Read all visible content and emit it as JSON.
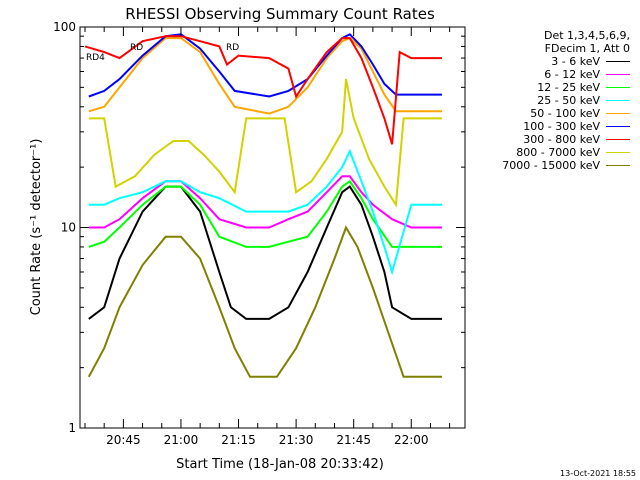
{
  "chart_data": {
    "type": "line",
    "title": "RHESSI Observing Summary Count Rates",
    "xlabel": "Start Time (18-Jan-08 20:33:42)",
    "ylabel": "Count Rate (s⁻¹ detector⁻¹)",
    "yscale": "log",
    "ylim": [
      1,
      100
    ],
    "xlim": [
      "20:33:42",
      "22:14:00"
    ],
    "x_tick_labels": [
      "20:45",
      "21:00",
      "21:15",
      "21:30",
      "21:45",
      "22:00"
    ],
    "y_tick_labels": [
      "1",
      "10",
      "100"
    ],
    "timestamp": "13-Oct-2021 18:55",
    "legend_header": [
      "Det 1,3,4,5,6,9,",
      "FDecim 1, Att 0"
    ],
    "annotations": [
      "RD",
      "RD4",
      "RD"
    ],
    "series": [
      {
        "name": "3 - 6 keV",
        "color": "#000000",
        "values": [
          [
            "20:36",
            3.5
          ],
          [
            "20:40",
            4
          ],
          [
            "20:44",
            7
          ],
          [
            "20:50",
            12
          ],
          [
            "20:56",
            16
          ],
          [
            "21:00",
            16
          ],
          [
            "21:05",
            12
          ],
          [
            "21:10",
            6
          ],
          [
            "21:13",
            4
          ],
          [
            "21:17",
            3.5
          ],
          [
            "21:23",
            3.5
          ],
          [
            "21:28",
            4
          ],
          [
            "21:33",
            6
          ],
          [
            "21:38",
            10
          ],
          [
            "21:42",
            15
          ],
          [
            "21:44",
            16
          ],
          [
            "21:47",
            13
          ],
          [
            "21:50",
            9
          ],
          [
            "21:53",
            6
          ],
          [
            "21:55",
            4
          ],
          [
            "22:00",
            3.5
          ],
          [
            "22:08",
            3.5
          ]
        ]
      },
      {
        "name": "6 - 12 keV",
        "color": "#ff00ff",
        "values": [
          [
            "20:36",
            10
          ],
          [
            "20:40",
            10
          ],
          [
            "20:44",
            11
          ],
          [
            "20:50",
            14
          ],
          [
            "20:56",
            17
          ],
          [
            "21:00",
            17
          ],
          [
            "21:05",
            14
          ],
          [
            "21:10",
            11
          ],
          [
            "21:17",
            10
          ],
          [
            "21:23",
            10
          ],
          [
            "21:28",
            11
          ],
          [
            "21:33",
            12
          ],
          [
            "21:38",
            15
          ],
          [
            "21:42",
            18
          ],
          [
            "21:44",
            18
          ],
          [
            "21:47",
            15
          ],
          [
            "21:50",
            13
          ],
          [
            "21:55",
            11
          ],
          [
            "22:00",
            10
          ],
          [
            "22:08",
            10
          ]
        ]
      },
      {
        "name": "12 - 25 keV",
        "color": "#00ff00",
        "values": [
          [
            "20:36",
            8
          ],
          [
            "20:40",
            8.5
          ],
          [
            "20:44",
            10
          ],
          [
            "20:50",
            13
          ],
          [
            "20:56",
            16
          ],
          [
            "21:00",
            16
          ],
          [
            "21:05",
            13
          ],
          [
            "21:10",
            9
          ],
          [
            "21:17",
            8
          ],
          [
            "21:23",
            8
          ],
          [
            "21:28",
            8.5
          ],
          [
            "21:33",
            9
          ],
          [
            "21:38",
            12
          ],
          [
            "21:42",
            16
          ],
          [
            "21:44",
            17
          ],
          [
            "21:47",
            14
          ],
          [
            "21:50",
            11
          ],
          [
            "21:55",
            8
          ],
          [
            "22:00",
            8
          ],
          [
            "22:08",
            8
          ]
        ]
      },
      {
        "name": "25 - 50 keV",
        "color": "#00ffff",
        "values": [
          [
            "20:36",
            13
          ],
          [
            "20:40",
            13
          ],
          [
            "20:44",
            14
          ],
          [
            "20:50",
            15
          ],
          [
            "20:56",
            17
          ],
          [
            "21:00",
            17
          ],
          [
            "21:05",
            15
          ],
          [
            "21:10",
            14
          ],
          [
            "21:17",
            12
          ],
          [
            "21:23",
            12
          ],
          [
            "21:28",
            12
          ],
          [
            "21:33",
            13
          ],
          [
            "21:38",
            16
          ],
          [
            "21:42",
            20
          ],
          [
            "21:44",
            24
          ],
          [
            "21:47",
            17
          ],
          [
            "21:50",
            12
          ],
          [
            "21:53",
            8
          ],
          [
            "21:55",
            6
          ],
          [
            "22:00",
            13
          ],
          [
            "22:08",
            13
          ]
        ]
      },
      {
        "name": "50 - 100 keV",
        "color": "#ffa500",
        "values": [
          [
            "20:36",
            38
          ],
          [
            "20:40",
            40
          ],
          [
            "20:44",
            50
          ],
          [
            "20:50",
            70
          ],
          [
            "20:56",
            88
          ],
          [
            "21:00",
            88
          ],
          [
            "21:05",
            75
          ],
          [
            "21:10",
            52
          ],
          [
            "21:14",
            40
          ],
          [
            "21:23",
            37
          ],
          [
            "21:28",
            40
          ],
          [
            "21:33",
            50
          ],
          [
            "21:38",
            70
          ],
          [
            "21:42",
            85
          ],
          [
            "21:44",
            88
          ],
          [
            "21:47",
            78
          ],
          [
            "21:50",
            60
          ],
          [
            "21:53",
            46
          ],
          [
            "21:56",
            38
          ],
          [
            "22:00",
            38
          ],
          [
            "22:08",
            38
          ]
        ]
      },
      {
        "name": "100 - 300 keV",
        "color": "#0000ff",
        "values": [
          [
            "20:36",
            45
          ],
          [
            "20:40",
            48
          ],
          [
            "20:44",
            55
          ],
          [
            "20:50",
            72
          ],
          [
            "20:56",
            90
          ],
          [
            "21:00",
            92
          ],
          [
            "21:05",
            78
          ],
          [
            "21:10",
            60
          ],
          [
            "21:14",
            48
          ],
          [
            "21:23",
            45
          ],
          [
            "21:28",
            48
          ],
          [
            "21:33",
            55
          ],
          [
            "21:38",
            72
          ],
          [
            "21:42",
            88
          ],
          [
            "21:44",
            92
          ],
          [
            "21:47",
            80
          ],
          [
            "21:50",
            65
          ],
          [
            "21:53",
            52
          ],
          [
            "21:56",
            46
          ],
          [
            "22:00",
            46
          ],
          [
            "22:08",
            46
          ]
        ]
      },
      {
        "name": "300 - 800 keV",
        "color": "#ff0000",
        "values": [
          [
            "20:35",
            80
          ],
          [
            "20:40",
            75
          ],
          [
            "20:44",
            70
          ],
          [
            "20:50",
            85
          ],
          [
            "20:56",
            90
          ],
          [
            "21:00",
            90
          ],
          [
            "21:05",
            85
          ],
          [
            "21:10",
            80
          ],
          [
            "21:12",
            65
          ],
          [
            "21:15",
            72
          ],
          [
            "21:23",
            70
          ],
          [
            "21:28",
            62
          ],
          [
            "21:30",
            45
          ],
          [
            "21:33",
            55
          ],
          [
            "21:38",
            75
          ],
          [
            "21:42",
            88
          ],
          [
            "21:44",
            88
          ],
          [
            "21:47",
            70
          ],
          [
            "21:50",
            50
          ],
          [
            "21:53",
            35
          ],
          [
            "21:55",
            26
          ],
          [
            "21:57",
            75
          ],
          [
            "22:00",
            70
          ],
          [
            "22:08",
            70
          ]
        ]
      },
      {
        "name": "800 - 7000 keV",
        "color": "#d2d200",
        "values": [
          [
            "20:36",
            35
          ],
          [
            "20:40",
            35
          ],
          [
            "20:43",
            16
          ],
          [
            "20:48",
            18
          ],
          [
            "20:53",
            23
          ],
          [
            "20:58",
            27
          ],
          [
            "21:02",
            27
          ],
          [
            "21:06",
            23
          ],
          [
            "21:10",
            19
          ],
          [
            "21:14",
            15
          ],
          [
            "21:17",
            35
          ],
          [
            "21:23",
            35
          ],
          [
            "21:27",
            35
          ],
          [
            "21:30",
            15
          ],
          [
            "21:34",
            17
          ],
          [
            "21:38",
            22
          ],
          [
            "21:42",
            30
          ],
          [
            "21:43",
            55
          ],
          [
            "21:45",
            35
          ],
          [
            "21:49",
            22
          ],
          [
            "21:53",
            16
          ],
          [
            "21:56",
            13
          ],
          [
            "21:58",
            35
          ],
          [
            "22:08",
            35
          ]
        ]
      },
      {
        "name": "7000 - 15000 keV",
        "color": "#808000",
        "values": [
          [
            "20:36",
            1.8
          ],
          [
            "20:40",
            2.5
          ],
          [
            "20:44",
            4
          ],
          [
            "20:50",
            6.5
          ],
          [
            "20:56",
            9
          ],
          [
            "21:00",
            9
          ],
          [
            "21:05",
            7
          ],
          [
            "21:10",
            4
          ],
          [
            "21:14",
            2.5
          ],
          [
            "21:18",
            1.8
          ],
          [
            "21:25",
            1.8
          ],
          [
            "21:30",
            2.5
          ],
          [
            "21:35",
            4
          ],
          [
            "21:40",
            7
          ],
          [
            "21:43",
            10
          ],
          [
            "21:46",
            8
          ],
          [
            "21:50",
            5
          ],
          [
            "21:54",
            3
          ],
          [
            "21:58",
            1.8
          ],
          [
            "22:08",
            1.8
          ]
        ]
      }
    ]
  }
}
